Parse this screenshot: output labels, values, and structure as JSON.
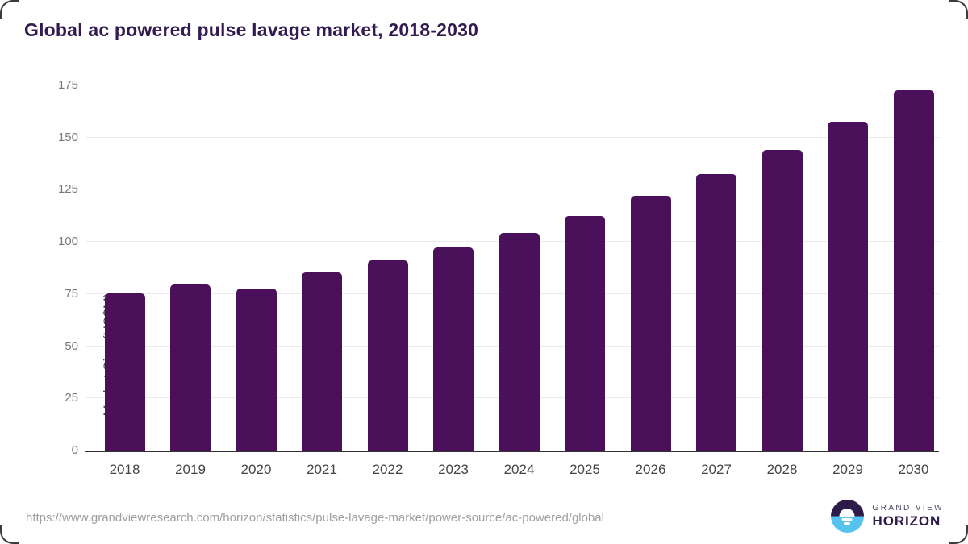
{
  "card": {
    "title": "Global ac powered pulse lavage market, 2018-2030",
    "source_url": "https://www.grandviewresearch.com/horizon/statistics/pulse-lavage-market/power-source/ac-powered/global",
    "logo": {
      "top_text": "GRAND VIEW",
      "bottom_text": "HORIZON"
    }
  },
  "colors": {
    "bar": "#4a1059",
    "title": "#321b52",
    "gridline": "#eaeaee",
    "axis_line": "#333333",
    "tick_label": "#7a7a7a",
    "category_label": "#454545",
    "source_text": "#9e9e9e",
    "logo_purple": "#2d1b4a",
    "logo_blue": "#56c3ef"
  },
  "chart_data": {
    "type": "bar",
    "title": "Global ac powered pulse lavage market, 2018-2030",
    "categories": [
      "2018",
      "2019",
      "2020",
      "2021",
      "2022",
      "2023",
      "2024",
      "2025",
      "2026",
      "2027",
      "2028",
      "2029",
      "2030"
    ],
    "values": [
      75.4,
      79.7,
      77.8,
      85.3,
      91.0,
      97.3,
      104.5,
      112.5,
      121.9,
      132.4,
      144.0,
      157.6,
      172.8
    ],
    "xlabel": "",
    "ylabel": "Market Size (US$M)",
    "ylim": [
      0,
      175
    ],
    "yticks": [
      0,
      25,
      50,
      75,
      100,
      125,
      150,
      175
    ],
    "grid": true,
    "legend": false,
    "bar_color": "#4a1059"
  }
}
